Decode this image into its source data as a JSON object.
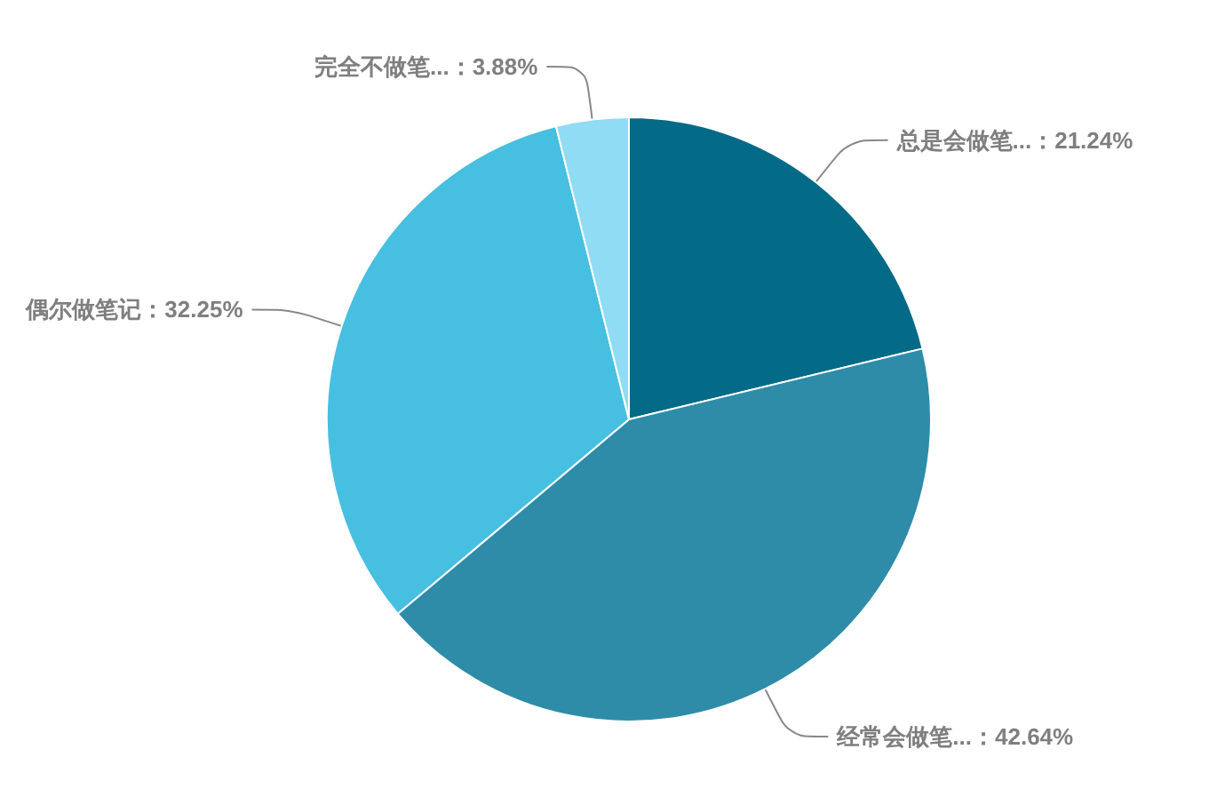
{
  "chart_data": {
    "type": "pie",
    "categories": [
      "总是会做笔...",
      "经常会做笔...",
      "偶尔做笔记",
      "完全不做笔..."
    ],
    "values": [
      21.24,
      42.64,
      32.25,
      3.88
    ],
    "value_labels": [
      "21.24%",
      "42.64%",
      "32.25%",
      "3.88%"
    ],
    "colors": [
      "#036a87",
      "#2e8ca9",
      "#47bfe1",
      "#8fdcf4"
    ],
    "legend": false
  }
}
